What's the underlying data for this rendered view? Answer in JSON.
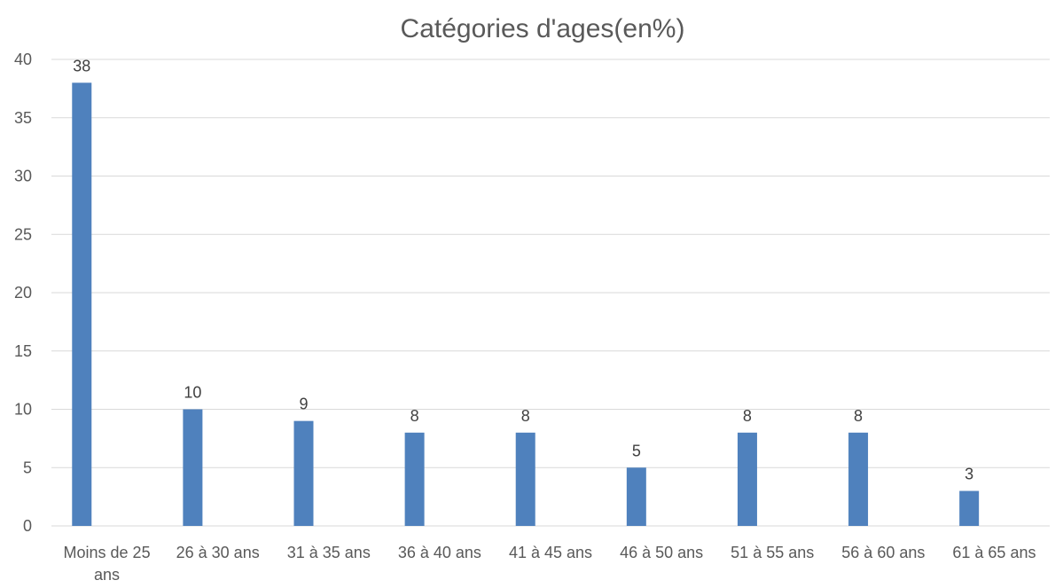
{
  "chart_data": {
    "type": "bar",
    "title": "Catégories d'ages(en%)",
    "xlabel": "",
    "ylabel": "",
    "categories": [
      "Moins de 25 ans",
      "26 à 30 ans",
      "31 à 35 ans",
      "36 à 40 ans",
      "41 à 45 ans",
      "46 à 50 ans",
      "51 à 55 ans",
      "56 à 60 ans",
      "61 à 65 ans"
    ],
    "values": [
      38,
      10,
      9,
      8,
      8,
      5,
      8,
      8,
      3
    ],
    "ylim": [
      0,
      40
    ],
    "yticks": [
      0,
      5,
      10,
      15,
      20,
      25,
      30,
      35,
      40
    ],
    "grid": true,
    "legend": "none",
    "data_labels": true,
    "bar_color": "#4F81BD"
  }
}
